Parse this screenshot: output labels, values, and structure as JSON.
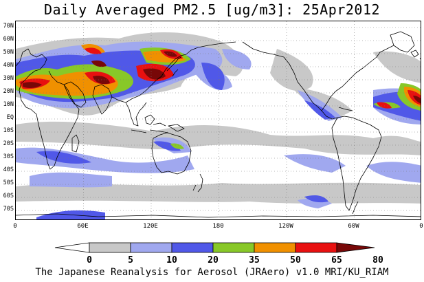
{
  "title": "Daily Averaged PM2.5 [ug/m3]: 25Apr2012",
  "footer": "The Japanese Reanalysis for Aerosol (JRAero) v1.0 MRI/KU_RIAM",
  "latitude_labels": [
    "70N",
    "60N",
    "50N",
    "40N",
    "30N",
    "20N",
    "10N",
    "EQ",
    "10S",
    "20S",
    "30S",
    "40S",
    "50S",
    "60S",
    "70S"
  ],
  "longitude_labels": [
    "0",
    "60E",
    "120E",
    "180",
    "120W",
    "60W",
    "0"
  ],
  "colorbar": {
    "levels": [
      "0",
      "5",
      "10",
      "20",
      "35",
      "50",
      "65",
      "80"
    ],
    "colors": [
      "#ffffff",
      "#c8c8c8",
      "#a0a8ef",
      "#5058e8",
      "#88c828",
      "#f09000",
      "#e81010",
      "#780808"
    ]
  }
}
